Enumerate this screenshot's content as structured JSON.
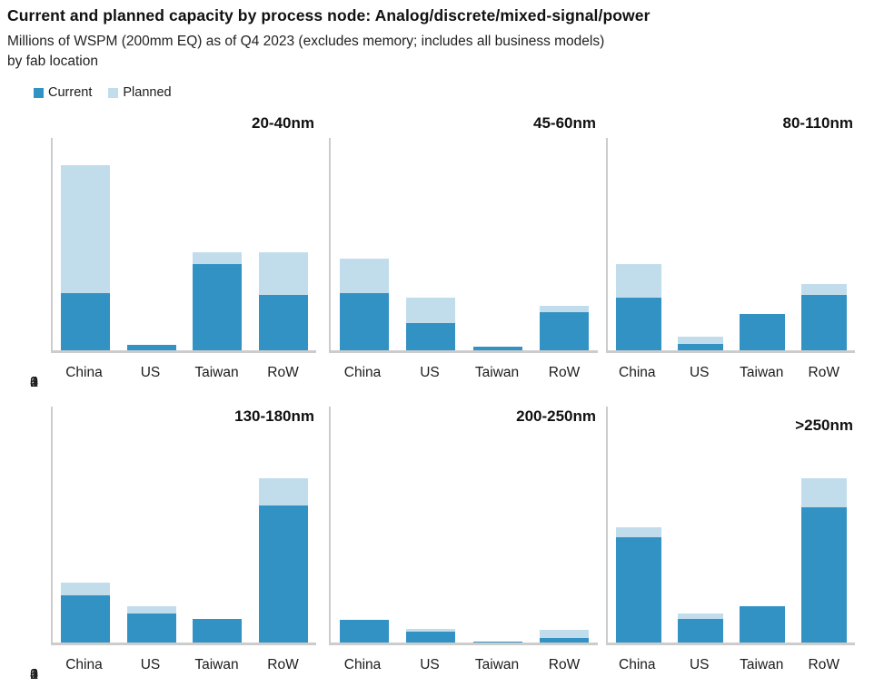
{
  "header": {
    "title": "Current and planned capacity by process node: Analog/discrete/mixed-signal/power",
    "subtitle_line1": "Millions of WSPM (200mm EQ) as of Q4 2023 (excludes memory; includes all business models)",
    "subtitle_line2": "by fab location"
  },
  "legend": {
    "items": [
      {
        "label": "Current",
        "color": "#3292c4"
      },
      {
        "label": "Planned",
        "color": "#c1ddec"
      }
    ]
  },
  "colors": {
    "current": "#3292c4",
    "planned": "#c1ddec",
    "axis": "#cccccc"
  },
  "chart_data": [
    {
      "type": "bar",
      "stacked": true,
      "title": "20-40nm",
      "categories": [
        "China",
        "US",
        "Taiwan",
        "RoW"
      ],
      "series": [
        {
          "name": "Current",
          "values": [
            1.07,
            0.1,
            1.62,
            1.05
          ]
        },
        {
          "name": "Planned",
          "values": [
            2.42,
            0.0,
            0.22,
            0.8
          ]
        }
      ],
      "ylim": [
        0,
        4
      ],
      "yticks": [
        0,
        1,
        2,
        3,
        4
      ],
      "grid": false,
      "legend_position": "top-left"
    },
    {
      "type": "bar",
      "stacked": true,
      "title": "45-60nm",
      "categories": [
        "China",
        "US",
        "Taiwan",
        "RoW"
      ],
      "series": [
        {
          "name": "Current",
          "values": [
            1.08,
            0.52,
            0.07,
            0.71
          ]
        },
        {
          "name": "Planned",
          "values": [
            0.64,
            0.48,
            0.0,
            0.12
          ]
        }
      ],
      "ylim": [
        0,
        4
      ],
      "yticks": [
        0,
        1,
        2,
        3,
        4
      ],
      "grid": false
    },
    {
      "type": "bar",
      "stacked": true,
      "title": "80-110nm",
      "categories": [
        "China",
        "US",
        "Taiwan",
        "RoW"
      ],
      "series": [
        {
          "name": "Current",
          "values": [
            1.0,
            0.12,
            0.68,
            1.05
          ]
        },
        {
          "name": "Planned",
          "values": [
            0.62,
            0.13,
            0.0,
            0.2
          ]
        }
      ],
      "ylim": [
        0,
        4
      ],
      "yticks": [
        0,
        1,
        2,
        3,
        4
      ],
      "grid": false
    },
    {
      "type": "bar",
      "stacked": true,
      "title": "130-180nm",
      "categories": [
        "China",
        "US",
        "Taiwan",
        "RoW"
      ],
      "series": [
        {
          "name": "Current",
          "values": [
            0.8,
            0.5,
            0.4,
            2.32
          ]
        },
        {
          "name": "Planned",
          "values": [
            0.22,
            0.12,
            0.0,
            0.46
          ]
        }
      ],
      "ylim": [
        0,
        4
      ],
      "yticks": [
        0,
        1,
        2,
        3,
        4
      ],
      "grid": false
    },
    {
      "type": "bar",
      "stacked": true,
      "title": "200-250nm",
      "categories": [
        "China",
        "US",
        "Taiwan",
        "RoW"
      ],
      "series": [
        {
          "name": "Current",
          "values": [
            0.38,
            0.18,
            0.02,
            0.08
          ]
        },
        {
          "name": "Planned",
          "values": [
            0.0,
            0.05,
            0.0,
            0.14
          ]
        }
      ],
      "ylim": [
        0,
        4
      ],
      "yticks": [
        0,
        1,
        2,
        3,
        4
      ],
      "grid": false
    },
    {
      "type": "bar",
      "stacked": true,
      "title": ">250nm",
      "categories": [
        "China",
        "US",
        "Taiwan",
        "RoW"
      ],
      "series": [
        {
          "name": "Current",
          "values": [
            1.78,
            0.4,
            0.62,
            2.3
          ]
        },
        {
          "name": "Planned",
          "values": [
            0.18,
            0.1,
            0.0,
            0.48
          ]
        }
      ],
      "ylim": [
        0,
        4
      ],
      "yticks": [
        0,
        1,
        2,
        3,
        4
      ],
      "grid": false
    }
  ]
}
